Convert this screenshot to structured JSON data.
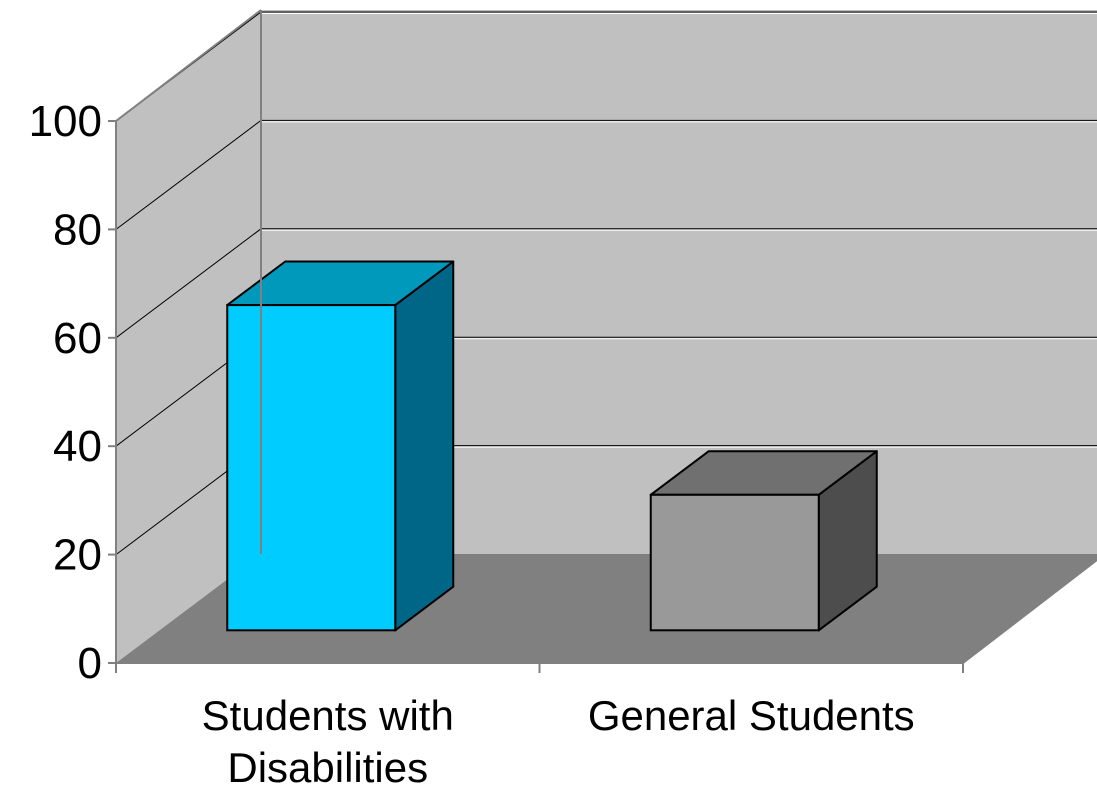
{
  "chart_data": {
    "type": "bar",
    "style": "3d-column",
    "categories": [
      "Students with Disabilities",
      "General Students"
    ],
    "category_label_lines": [
      [
        "Students with",
        "Disabilities"
      ],
      [
        "General Students"
      ]
    ],
    "values": [
      60,
      25
    ],
    "ylim": [
      0,
      100
    ],
    "yticks": [
      "0",
      "20",
      "40",
      "60",
      "80",
      "100"
    ],
    "grid": true,
    "legend": "none",
    "colors": {
      "bars": [
        {
          "front": "#00ccff",
          "top": "#0099bb",
          "side": "#006688"
        },
        {
          "front": "#999999",
          "top": "#707070",
          "side": "#4d4d4d"
        }
      ],
      "back_wall": "#c0c0c0",
      "side_wall": "#c0c0c0",
      "floor": "#808080",
      "grid_line": "#000000",
      "axis_line": "#808080"
    }
  }
}
